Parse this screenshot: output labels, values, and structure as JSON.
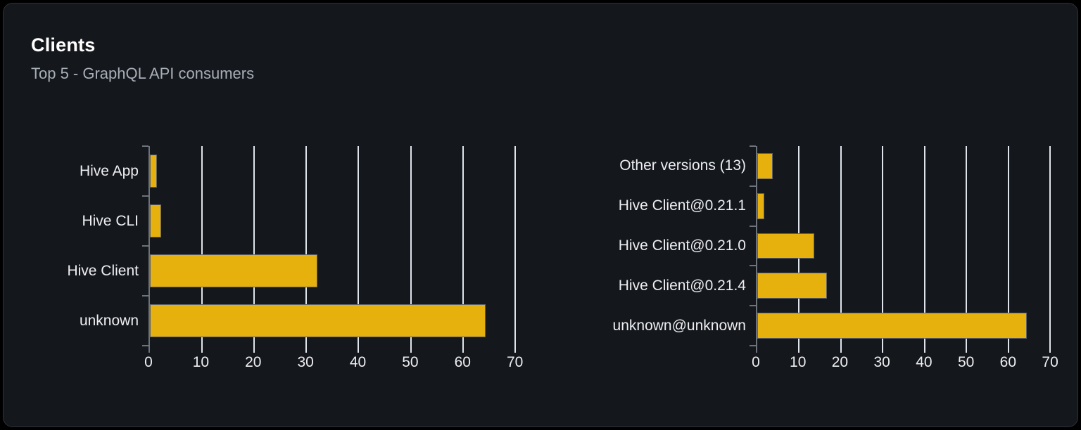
{
  "header": {
    "title": "Clients",
    "subtitle": "Top 5 - GraphQL API consumers"
  },
  "colors": {
    "page_bg": "#000000",
    "card_bg": "#14171c",
    "card_border": "#2d3139",
    "title_text": "#ffffff",
    "subtitle_text": "#a8aeb8",
    "bar_fill": "#e7b10d",
    "bar_border": "#5f636a",
    "gridline": "#dfe4ec",
    "axis": "#6d727b",
    "label_text": "#edeef1"
  },
  "chart_data": [
    {
      "type": "bar",
      "orientation": "horizontal",
      "title": "",
      "categories": [
        "Hive App",
        "Hive CLI",
        "Hive Client",
        "unknown"
      ],
      "values": [
        1.4,
        2.1,
        32.1,
        64.4
      ],
      "xlim": [
        0,
        73
      ],
      "xticks": [
        0,
        10,
        20,
        30,
        40,
        50,
        60,
        70
      ],
      "grid": true,
      "legend_position": "none"
    },
    {
      "type": "bar",
      "orientation": "horizontal",
      "title": "",
      "categories": [
        "Other versions (13)",
        "Hive Client@0.21.1",
        "Hive Client@0.21.0",
        "Hive Client@0.21.4",
        "unknown@unknown"
      ],
      "values": [
        3.7,
        1.7,
        13.7,
        16.6,
        64.4
      ],
      "xlim": [
        0,
        73
      ],
      "xticks": [
        0,
        10,
        20,
        30,
        40,
        50,
        60,
        70
      ],
      "grid": true,
      "legend_position": "none"
    }
  ]
}
